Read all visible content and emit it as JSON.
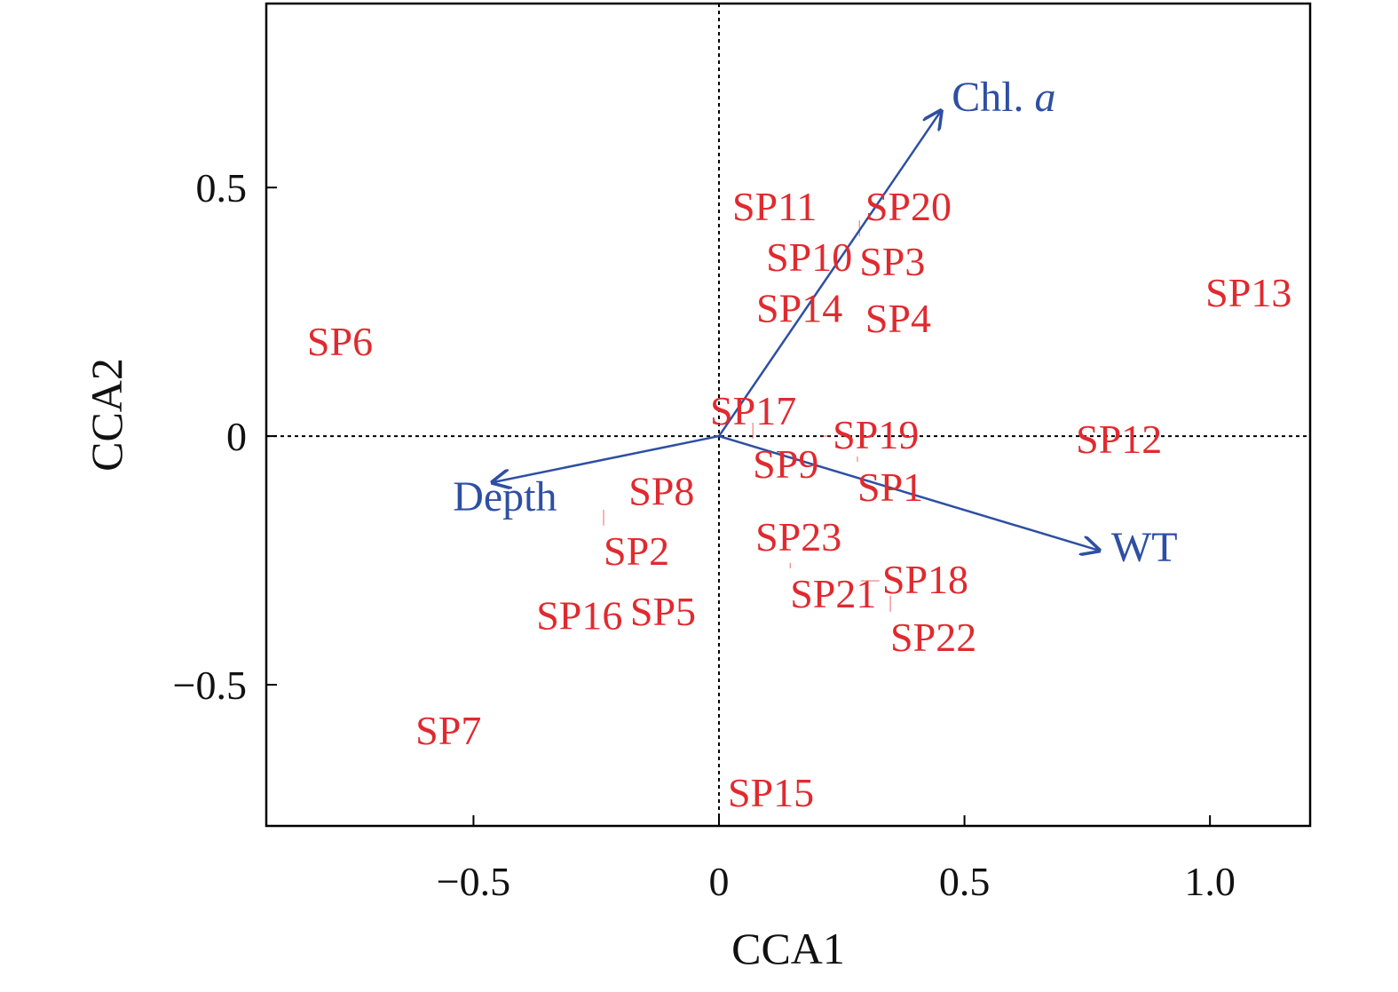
{
  "chart_data": {
    "type": "scatter",
    "title": "",
    "xlabel": "CCA1",
    "ylabel": "CCA2",
    "xlim": [
      -0.922,
      1.204
    ],
    "ylim": [
      -0.784,
      0.87
    ],
    "xticks": [
      {
        "value": -0.5,
        "label": "−0.5"
      },
      {
        "value": 0,
        "label": "0"
      },
      {
        "value": 0.5,
        "label": "0.5"
      },
      {
        "value": 1.0,
        "label": "1.0"
      }
    ],
    "yticks": [
      {
        "value": 0.5,
        "label": "0.5"
      },
      {
        "value": 0,
        "label": "0"
      },
      {
        "value": -0.5,
        "label": "−0.5"
      }
    ],
    "grid": false,
    "reference_lines": {
      "x0": true,
      "y0": true,
      "style": "dotted"
    },
    "point_color": "#e02a2f",
    "arrow_color": "#2e4fa3",
    "points": [
      {
        "label": "SP11",
        "x": 0.027,
        "y": 0.434
      },
      {
        "label": "SP20",
        "x": 0.298,
        "y": 0.434
      },
      {
        "label": "SP3",
        "x": 0.286,
        "y": 0.409
      },
      {
        "label": "SP10",
        "x": 0.096,
        "y": 0.332
      },
      {
        "label": "SP4",
        "x": 0.298,
        "y": 0.252
      },
      {
        "label": "SP13",
        "x": 0.991,
        "y": 0.261
      },
      {
        "label": "SP14",
        "x": 0.076,
        "y": 0.23
      },
      {
        "label": "SP6",
        "x": -0.839,
        "y": 0.163
      },
      {
        "label": "SP17",
        "x": -0.018,
        "y": 0.023
      },
      {
        "label": "SP9",
        "x": 0.069,
        "y": 0.002
      },
      {
        "label": "SP19",
        "x": 0.21,
        "y": -0.025
      },
      {
        "label": "SP1",
        "x": 0.282,
        "y": -0.066
      },
      {
        "label": "SP12",
        "x": 0.727,
        "y": -0.034
      },
      {
        "label": "SP8",
        "x": -0.184,
        "y": -0.138
      },
      {
        "label": "SP2",
        "x": -0.235,
        "y": -0.173
      },
      {
        "label": "SP23",
        "x": 0.096,
        "y": -0.23
      },
      {
        "label": "SP21",
        "x": 0.145,
        "y": -0.28
      },
      {
        "label": "SP18",
        "x": 0.289,
        "y": -0.316
      },
      {
        "label": "SP22",
        "x": 0.349,
        "y": -0.346
      },
      {
        "label": "SP5",
        "x": -0.181,
        "y": -0.359
      },
      {
        "label": "SP16",
        "x": -0.307,
        "y": -0.388
      },
      {
        "label": "SP7",
        "x": -0.618,
        "y": -0.62
      },
      {
        "label": "SP15",
        "x": 0.018,
        "y": -0.745
      }
    ],
    "arrows": [
      {
        "label": "Chl.",
        "label_italic": "a",
        "x": 0.452,
        "y": 0.654,
        "label_x": 0.474,
        "label_y": 0.654
      },
      {
        "label": "Depth",
        "label_italic": "",
        "x": -0.461,
        "y": -0.093,
        "label_x": -0.542,
        "label_y": -0.15
      },
      {
        "label": "WT",
        "label_italic": "",
        "x": 0.774,
        "y": -0.23,
        "label_x": 0.799,
        "label_y": -0.252
      }
    ]
  }
}
